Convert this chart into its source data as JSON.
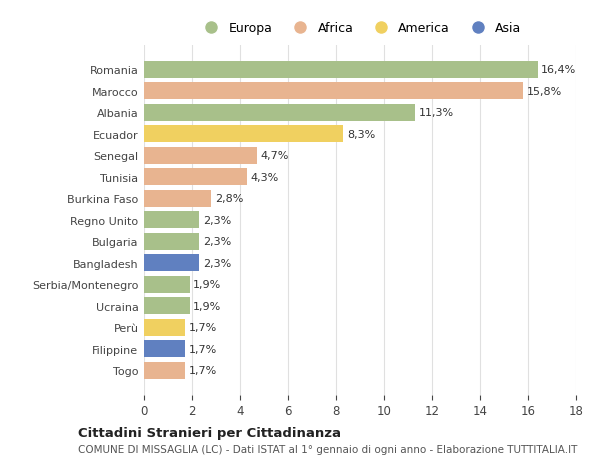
{
  "categories": [
    "Romania",
    "Marocco",
    "Albania",
    "Ecuador",
    "Senegal",
    "Tunisia",
    "Burkina Faso",
    "Regno Unito",
    "Bulgaria",
    "Bangladesh",
    "Serbia/Montenegro",
    "Ucraina",
    "Perù",
    "Filippine",
    "Togo"
  ],
  "values": [
    16.4,
    15.8,
    11.3,
    8.3,
    4.7,
    4.3,
    2.8,
    2.3,
    2.3,
    2.3,
    1.9,
    1.9,
    1.7,
    1.7,
    1.7
  ],
  "labels": [
    "16,4%",
    "15,8%",
    "11,3%",
    "8,3%",
    "4,7%",
    "4,3%",
    "2,8%",
    "2,3%",
    "2,3%",
    "2,3%",
    "1,9%",
    "1,9%",
    "1,7%",
    "1,7%",
    "1,7%"
  ],
  "continents": [
    "Europa",
    "Africa",
    "Europa",
    "America",
    "Africa",
    "Africa",
    "Africa",
    "Europa",
    "Europa",
    "Asia",
    "Europa",
    "Europa",
    "America",
    "Asia",
    "Africa"
  ],
  "colors": {
    "Europa": "#a8c08a",
    "Africa": "#e8b490",
    "America": "#f0d060",
    "Asia": "#6080c0"
  },
  "legend_order": [
    "Europa",
    "Africa",
    "America",
    "Asia"
  ],
  "xlim": [
    0,
    18
  ],
  "xticks": [
    0,
    2,
    4,
    6,
    8,
    10,
    12,
    14,
    16,
    18
  ],
  "title1": "Cittadini Stranieri per Cittadinanza",
  "title2": "COMUNE DI MISSAGLIA (LC) - Dati ISTAT al 1° gennaio di ogni anno - Elaborazione TUTTITALIA.IT",
  "bg_color": "#ffffff",
  "grid_color": "#e0e0e0",
  "bar_height": 0.78,
  "label_fontsize": 8.0,
  "ytick_fontsize": 8.0,
  "xtick_fontsize": 8.5,
  "legend_fontsize": 9.0,
  "title1_fontsize": 9.5,
  "title2_fontsize": 7.5
}
